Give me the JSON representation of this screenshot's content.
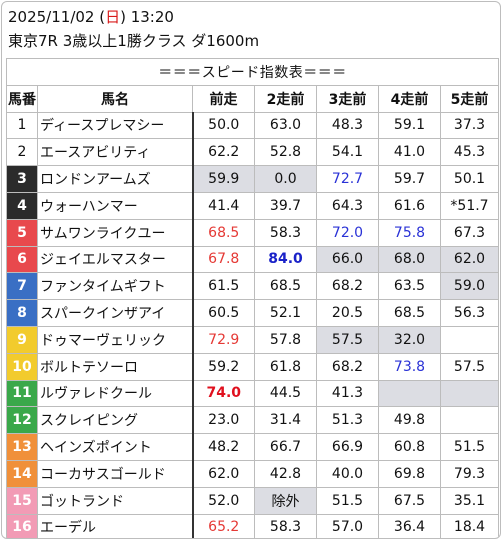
{
  "header": {
    "date_prefix": "2025/11/02 (",
    "day": "日",
    "date_suffix": ") 13:20",
    "race": "東京7R 3歳以上1勝クラス ダ1600m"
  },
  "table_title": "＝＝＝スピード指数表＝＝＝",
  "columns": [
    "馬番",
    "馬名",
    "前走",
    "2走前",
    "3走前",
    "4走前",
    "5走前"
  ],
  "colors": {
    "1": "#ffffff",
    "2": "#ffffff",
    "3": "#2b2b2b",
    "4": "#2b2b2b",
    "5": "#e8494d",
    "6": "#e8494d",
    "7": "#3a6fc4",
    "8": "#3a6fc4",
    "9": "#f2cb2d",
    "10": "#f2cb2d",
    "11": "#3aa84a",
    "12": "#3aa84a",
    "13": "#f0903a",
    "14": "#f0903a",
    "15": "#f29bb5",
    "16": "#f29bb5",
    "red_text": "#e53935",
    "blue_text": "#2a32d6",
    "gray_cell": "#dcdde3"
  },
  "rows": [
    {
      "no": "1",
      "name": "ディースプレマシー",
      "v": [
        "50.0",
        "63.0",
        "48.3",
        "59.1",
        "37.3"
      ]
    },
    {
      "no": "2",
      "name": "エースアビリティ",
      "v": [
        "62.2",
        "52.8",
        "54.1",
        "41.0",
        "45.3"
      ]
    },
    {
      "no": "3",
      "name": "ロンドンアームズ",
      "v": [
        "59.9",
        "0.0",
        "72.7",
        "59.7",
        "50.1"
      ]
    },
    {
      "no": "4",
      "name": "ウォーハンマー",
      "v": [
        "41.4",
        "39.7",
        "64.3",
        "61.6",
        "*51.7"
      ]
    },
    {
      "no": "5",
      "name": "サムワンライクユー",
      "v": [
        "68.5",
        "58.3",
        "72.0",
        "75.8",
        "67.3"
      ]
    },
    {
      "no": "6",
      "name": "ジェイエルマスター",
      "v": [
        "67.8",
        "84.0",
        "66.0",
        "68.0",
        "62.0"
      ]
    },
    {
      "no": "7",
      "name": "ファンタイムギフト",
      "v": [
        "61.5",
        "68.5",
        "68.2",
        "63.5",
        "59.0"
      ]
    },
    {
      "no": "8",
      "name": "スパークインザアイ",
      "v": [
        "60.5",
        "52.1",
        "20.5",
        "68.5",
        "56.3"
      ]
    },
    {
      "no": "9",
      "name": "ドゥマーヴェリック",
      "v": [
        "72.9",
        "57.8",
        "57.5",
        "32.0",
        ""
      ]
    },
    {
      "no": "10",
      "name": "ボルトテソーロ",
      "v": [
        "59.2",
        "61.8",
        "68.2",
        "73.8",
        "57.5"
      ]
    },
    {
      "no": "11",
      "name": "ルヴァレドクール",
      "v": [
        "74.0",
        "44.5",
        "41.3",
        "",
        ""
      ]
    },
    {
      "no": "12",
      "name": "スクレイピング",
      "v": [
        "23.0",
        "31.4",
        "51.3",
        "49.8",
        ""
      ]
    },
    {
      "no": "13",
      "name": "ヘインズポイント",
      "v": [
        "48.2",
        "66.7",
        "66.9",
        "60.8",
        "51.5"
      ]
    },
    {
      "no": "14",
      "name": "コーカサスゴールド",
      "v": [
        "62.0",
        "42.8",
        "40.0",
        "69.8",
        "79.3"
      ]
    },
    {
      "no": "15",
      "name": "ゴットランド",
      "v": [
        "52.0",
        "除外",
        "51.5",
        "67.5",
        "35.1"
      ]
    },
    {
      "no": "16",
      "name": "エーデル",
      "v": [
        "65.2",
        "58.3",
        "57.0",
        "36.4",
        "18.4"
      ]
    }
  ]
}
